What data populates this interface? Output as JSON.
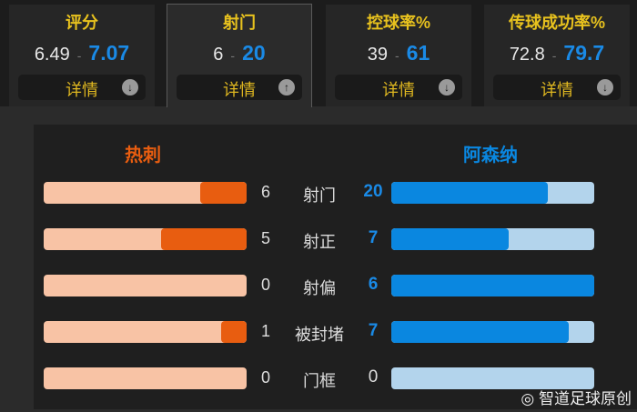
{
  "cards": [
    {
      "title": "评分",
      "home": "6.49",
      "away": "7.07",
      "detail": "详情",
      "arrow": "down",
      "selected": false
    },
    {
      "title": "射门",
      "home": "6",
      "away": "20",
      "detail": "详情",
      "arrow": "up",
      "selected": true
    },
    {
      "title": "控球率%",
      "home": "39",
      "away": "61",
      "detail": "详情",
      "arrow": "down",
      "selected": false
    },
    {
      "title": "传球成功率%",
      "home": "72.8",
      "away": "79.7",
      "detail": "详情",
      "arrow": "down",
      "selected": false
    }
  ],
  "separator": "-",
  "teams": {
    "home": "热刺",
    "away": "阿森纳",
    "home_color": "#e85d10",
    "away_color": "#0a87e0"
  },
  "stats": [
    {
      "label": "射门",
      "home": 6,
      "away": 20,
      "home_fill": 0.23,
      "away_fill": 0.77
    },
    {
      "label": "射正",
      "home": 5,
      "away": 7,
      "home_fill": 0.42,
      "away_fill": 0.58
    },
    {
      "label": "射偏",
      "home": 0,
      "away": 6,
      "home_fill": 0,
      "away_fill": 1
    },
    {
      "label": "被封堵",
      "home": 1,
      "away": 7,
      "home_fill": 0.125,
      "away_fill": 0.875
    },
    {
      "label": "门框",
      "home": 0,
      "away": 0,
      "home_fill": 0,
      "away_fill": 0
    }
  ],
  "watermark": "智道足球原创"
}
